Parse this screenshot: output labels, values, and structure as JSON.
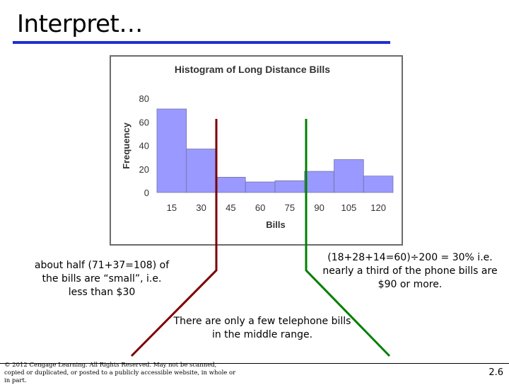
{
  "slide": {
    "title": "Interpret…",
    "note_left": "about half (71+37=108) of the bills are “small”, i.e. less than $30",
    "note_right": "(18+28+14=60)÷200 = 30% i.e. nearly a third of the phone bills are $90 or more.",
    "note_mid": "There are only a few telephone bills in the middle range.",
    "copyright": "© 2012 Cengage Learning. All Rights Reserved. May not be scanned, copied or duplicated, or posted to a publicly accessible website, in whole or in part.",
    "page_number": "2.6"
  },
  "colors": {
    "title_rule": "#1f2fd0",
    "bars": "#9999ff",
    "bar_edge": "#6b6b9f",
    "left_arrow": "#7b0000",
    "right_arrow": "#008000"
  },
  "chart_data": {
    "type": "bar",
    "title": "Histogram of Long Distance Bills",
    "xlabel": "Bills",
    "ylabel": "Frequency",
    "bins": [
      [
        7.5,
        22.5
      ],
      [
        22.5,
        37.5
      ],
      [
        37.5,
        52.5
      ],
      [
        52.5,
        67.5
      ],
      [
        67.5,
        82.5
      ],
      [
        82.5,
        97.5
      ],
      [
        97.5,
        112.5
      ],
      [
        112.5,
        127.5
      ]
    ],
    "values": [
      71,
      37,
      13,
      9,
      10,
      18,
      28,
      14
    ],
    "xticks": [
      15,
      30,
      45,
      60,
      75,
      90,
      105,
      120
    ],
    "yticks": [
      0,
      20,
      40,
      60,
      80
    ],
    "xlim": [
      7.5,
      127.5
    ],
    "ylim": [
      0,
      80
    ],
    "grid": false
  }
}
